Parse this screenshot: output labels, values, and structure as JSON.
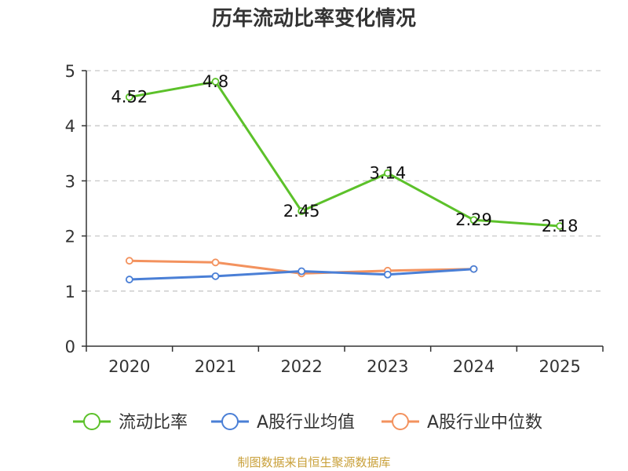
{
  "chart_data": {
    "type": "line",
    "title": "历年流动比率变化情况",
    "categories": [
      "2020",
      "2021",
      "2022",
      "2023",
      "2024",
      "2025"
    ],
    "ylim": [
      0,
      5
    ],
    "yticks": [
      "0",
      "1",
      "2",
      "3",
      "4",
      "5"
    ],
    "grid": true,
    "legend_position": "bottom",
    "series": [
      {
        "name": "流动比率",
        "color": "#5cc12a",
        "values": [
          4.52,
          4.8,
          2.45,
          3.14,
          2.29,
          2.18
        ],
        "labels": [
          "4.52",
          "4.8",
          "2.45",
          "3.14",
          "2.29",
          "2.18"
        ]
      },
      {
        "name": "A股行业均值",
        "color": "#4a7fd6",
        "values": [
          1.21,
          1.27,
          1.36,
          1.3,
          1.4,
          null
        ]
      },
      {
        "name": "A股行业中位数",
        "color": "#f3925e",
        "values": [
          1.55,
          1.52,
          1.32,
          1.37,
          1.4,
          null
        ]
      }
    ]
  },
  "source_text": "制图数据来自恒生聚源数据库",
  "source_color": "#c9a03a"
}
